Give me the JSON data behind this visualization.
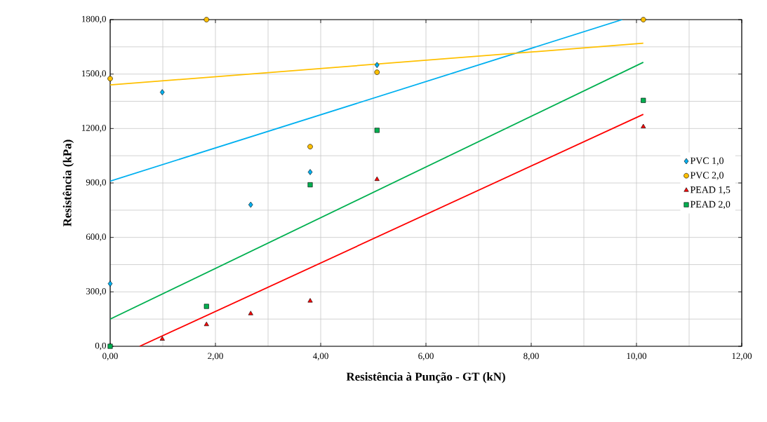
{
  "chart_data": {
    "type": "scatter",
    "xlabel": "Resistência à Punção - GT (kN)",
    "ylabel": "Resistência (kPa)",
    "xlim": [
      0,
      12
    ],
    "ylim": [
      0,
      1800
    ],
    "xticks": [
      {
        "value": 0,
        "label": "0,00"
      },
      {
        "value": 2,
        "label": "2,00"
      },
      {
        "value": 4,
        "label": "4,00"
      },
      {
        "value": 6,
        "label": "6,00"
      },
      {
        "value": 8,
        "label": "8,00"
      },
      {
        "value": 10,
        "label": "10,00"
      },
      {
        "value": 12,
        "label": "12,00"
      }
    ],
    "yticks": [
      {
        "value": 0,
        "label": "0,0"
      },
      {
        "value": 300,
        "label": "300,0"
      },
      {
        "value": 600,
        "label": "600,0"
      },
      {
        "value": 900,
        "label": "900,0"
      },
      {
        "value": 1200,
        "label": "1200,0"
      },
      {
        "value": 1500,
        "label": "1500,0"
      },
      {
        "value": 1800,
        "label": "1800,0"
      }
    ],
    "grid": true,
    "legend": "right",
    "series": [
      {
        "name": "PVC 1,0",
        "color": "#00b0f0",
        "marker": "diamond",
        "x": [
          0,
          0.99,
          2.67,
          3.8,
          5.07
        ],
        "values": [
          345,
          1400,
          780,
          960,
          1550
        ]
      },
      {
        "name": "PVC 2,0",
        "color": "#ffc000",
        "marker": "circle",
        "x": [
          0,
          1.83,
          3.8,
          5.07,
          10.13
        ],
        "values": [
          1475,
          1800,
          1100,
          1510,
          1800
        ]
      },
      {
        "name": "PEAD 1,5",
        "color": "#ff0000",
        "marker": "triangle",
        "x": [
          0.99,
          1.83,
          2.67,
          3.8,
          5.07,
          10.13
        ],
        "values": [
          40,
          120,
          180,
          250,
          920,
          1210
        ]
      },
      {
        "name": "PEAD 2,0",
        "color": "#00b050",
        "marker": "square",
        "x": [
          0,
          1.83,
          3.8,
          5.07,
          10.13
        ],
        "values": [
          0,
          220,
          890,
          1190,
          1355
        ]
      },
      {
        "type": "line",
        "color": "#00b0f0",
        "x": [
          0,
          9.73
        ],
        "values": [
          910,
          1800
        ]
      },
      {
        "type": "line",
        "color": "#ffc000",
        "x": [
          0,
          10.13
        ],
        "values": [
          1440,
          1670
        ]
      },
      {
        "type": "line",
        "color": "#ff0000",
        "x": [
          0.56,
          10.13
        ],
        "values": [
          0,
          1278
        ]
      },
      {
        "type": "line",
        "color": "#00b050",
        "x": [
          0,
          10.13
        ],
        "values": [
          150,
          1565
        ]
      }
    ]
  }
}
